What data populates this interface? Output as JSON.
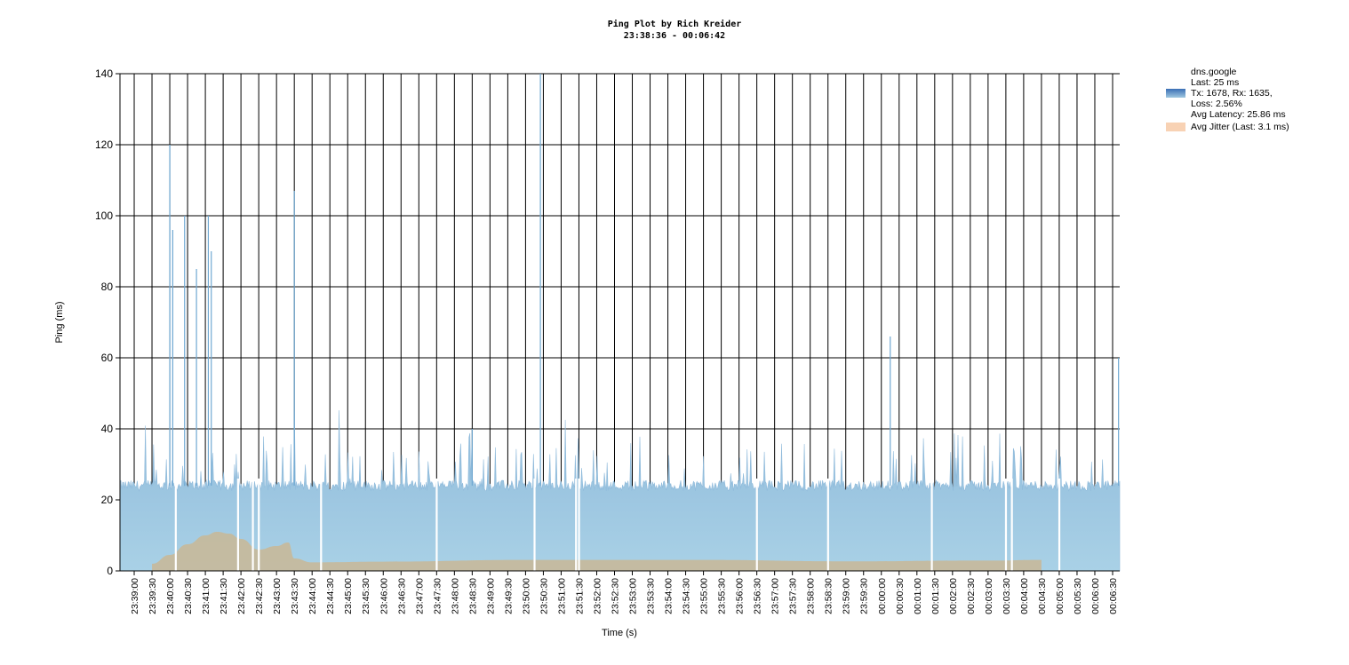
{
  "chart": {
    "title": "Ping Plot by Rich Kreider",
    "subtitle": "23:38:36 - 00:06:42"
  },
  "legend": {
    "latency_label": "dns.google\nLast: 25 ms\nTx: 1678, Rx: 1635,\nLoss: 2.56%\nAvg Latency: 25.86 ms",
    "jitter_label": "Avg Jitter (Last: 3.1 ms)"
  },
  "colors": {
    "latency": "#9fc7e0",
    "latency_spike": "#6fa8d2",
    "latency_swatch": "#3a6fb5",
    "jitter": "#c9b795",
    "jitter_swatch": "#f8d2b4",
    "grid": "#000000"
  },
  "chart_data": {
    "type": "area",
    "xlabel": "Time (s)",
    "ylabel": "Ping (ms)",
    "ylim": [
      0,
      140
    ],
    "y_ticks": [
      0,
      20,
      40,
      60,
      80,
      100,
      120,
      140
    ],
    "xlim": [
      "23:38:36",
      "00:06:42"
    ],
    "x_ticks": [
      "23:39:00",
      "23:39:30",
      "23:40:00",
      "23:40:30",
      "23:41:00",
      "23:41:30",
      "23:42:00",
      "23:42:30",
      "23:43:00",
      "23:43:30",
      "23:44:00",
      "23:44:30",
      "23:45:00",
      "23:45:30",
      "23:46:00",
      "23:46:30",
      "23:47:00",
      "23:47:30",
      "23:48:00",
      "23:48:30",
      "23:49:00",
      "23:49:30",
      "23:50:00",
      "23:50:30",
      "23:51:00",
      "23:51:30",
      "23:52:00",
      "23:52:30",
      "23:53:00",
      "23:53:30",
      "23:54:00",
      "23:54:30",
      "23:55:00",
      "23:55:30",
      "23:56:00",
      "23:56:30",
      "23:57:00",
      "23:57:30",
      "23:58:00",
      "23:58:30",
      "23:59:00",
      "23:59:30",
      "00:00:00",
      "00:00:30",
      "00:01:00",
      "00:01:30",
      "00:02:00",
      "00:02:30",
      "00:03:00",
      "00:03:30",
      "00:04:00",
      "00:04:30",
      "00:05:00",
      "00:05:30",
      "00:06:00",
      "00:06:30"
    ],
    "grid": true,
    "legend_position": "top-right",
    "series": [
      {
        "name": "dns.google",
        "baseline_ms": 24,
        "spikes": [
          {
            "time": "23:40:00",
            "ms": 120
          },
          {
            "time": "23:40:05",
            "ms": 96
          },
          {
            "time": "23:40:25",
            "ms": 100
          },
          {
            "time": "23:40:45",
            "ms": 85
          },
          {
            "time": "23:41:05",
            "ms": 100
          },
          {
            "time": "23:41:10",
            "ms": 90
          },
          {
            "time": "23:43:30",
            "ms": 107
          },
          {
            "time": "23:48:30",
            "ms": 40
          },
          {
            "time": "23:50:25",
            "ms": 140
          },
          {
            "time": "00:00:15",
            "ms": 66
          },
          {
            "time": "00:06:40",
            "ms": 60
          }
        ],
        "loss_gaps": [
          "23:40:10",
          "23:41:55",
          "23:42:20",
          "23:42:30",
          "23:44:15",
          "23:47:30",
          "23:50:15",
          "23:51:25",
          "23:51:30",
          "23:56:30",
          "23:58:30",
          "00:01:25",
          "00:03:30",
          "00:03:40",
          "00:05:00"
        ]
      },
      {
        "name": "Avg Jitter",
        "points": [
          {
            "time": "23:39:30",
            "ms": 2
          },
          {
            "time": "23:40:00",
            "ms": 4.5
          },
          {
            "time": "23:40:30",
            "ms": 7.5
          },
          {
            "time": "23:41:00",
            "ms": 10
          },
          {
            "time": "23:41:20",
            "ms": 11
          },
          {
            "time": "23:41:40",
            "ms": 10.5
          },
          {
            "time": "23:42:00",
            "ms": 9
          },
          {
            "time": "23:42:30",
            "ms": 6
          },
          {
            "time": "23:43:00",
            "ms": 7
          },
          {
            "time": "23:43:20",
            "ms": 8
          },
          {
            "time": "23:43:30",
            "ms": 3.5
          },
          {
            "time": "23:44:00",
            "ms": 2.4
          },
          {
            "time": "23:46:00",
            "ms": 2.6
          },
          {
            "time": "23:50:00",
            "ms": 3.1
          },
          {
            "time": "23:55:00",
            "ms": 3.1
          },
          {
            "time": "23:59:00",
            "ms": 2.7
          },
          {
            "time": "00:03:00",
            "ms": 2.9
          },
          {
            "time": "00:04:30",
            "ms": 3.1
          }
        ]
      }
    ]
  }
}
